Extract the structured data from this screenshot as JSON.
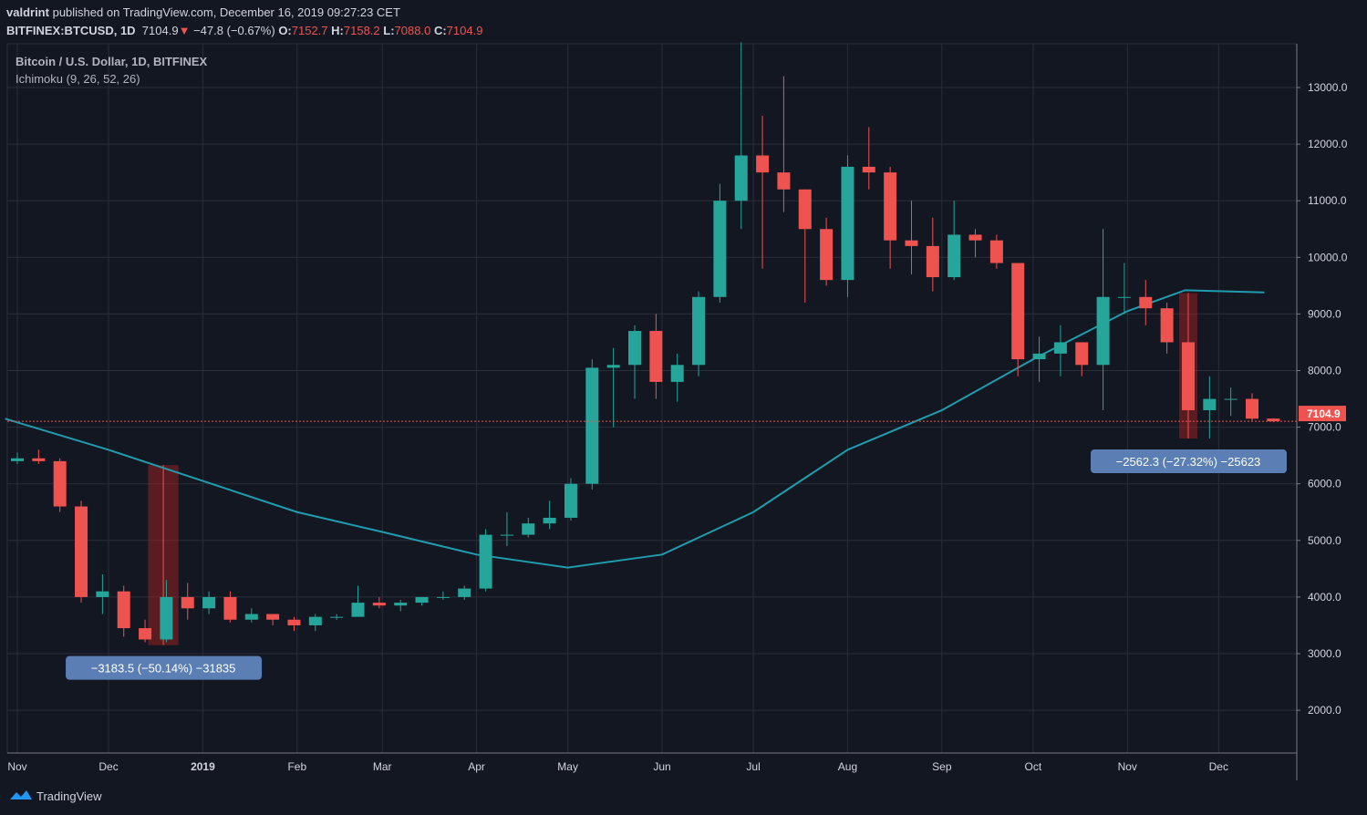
{
  "header": {
    "author": "valdrint",
    "published_text": "published on TradingView.com, December 16, 2019 09:27:23 CET",
    "symbol": "BITFINEX:BTCUSD, 1D",
    "last": "7104.9",
    "change": "−47.8 (−0.67%)",
    "o_label": "O:",
    "o": "7152.7",
    "h_label": "H:",
    "h": "7158.2",
    "l_label": "L:",
    "l": "7088.0",
    "c_label": "C:",
    "c": "7104.9"
  },
  "legend": {
    "title": "Bitcoin / U.S. Dollar, 1D, BITFINEX",
    "indicator": "Ichimoku (9, 26, 52, 26)"
  },
  "brand": "TradingView",
  "colors": {
    "background": "#131722",
    "grid": "#2a2e39",
    "up": "#26a69a",
    "down": "#ef5350",
    "ma": "#1f9cad",
    "measure_label": "#5b7fb5"
  },
  "chart_data": {
    "type": "candlestick",
    "ylim": [
      1000,
      13800
    ],
    "yticks": [
      2000,
      3000,
      4000,
      5000,
      6000,
      7000,
      8000,
      9000,
      10000,
      11000,
      12000,
      13000
    ],
    "ytick_labels": [
      "2000.0",
      "3000.0",
      "4000.0",
      "5000.0",
      "6000.0",
      "7000.0",
      "8000.0",
      "9000.0",
      "10000.0",
      "11000.0",
      "12000.0",
      "13000.0"
    ],
    "xticks": [
      {
        "date": "2018-11-01",
        "label": "Nov"
      },
      {
        "date": "2018-12-01",
        "label": "Dec"
      },
      {
        "date": "2019-01-01",
        "label": "2019"
      },
      {
        "date": "2019-02-01",
        "label": "Feb"
      },
      {
        "date": "2019-03-01",
        "label": "Mar"
      },
      {
        "date": "2019-04-01",
        "label": "Apr"
      },
      {
        "date": "2019-05-01",
        "label": "May"
      },
      {
        "date": "2019-06-01",
        "label": "Jun"
      },
      {
        "date": "2019-07-01",
        "label": "Jul"
      },
      {
        "date": "2019-08-01",
        "label": "Aug"
      },
      {
        "date": "2019-09-01",
        "label": "Sep"
      },
      {
        "date": "2019-10-01",
        "label": "Oct"
      },
      {
        "date": "2019-11-01",
        "label": "Nov"
      },
      {
        "date": "2019-12-01",
        "label": "Dec"
      }
    ],
    "last_price": 7104.9,
    "last_price_label": "7104.9",
    "candles": [
      [
        "2018-10-29",
        6400,
        6550,
        6350,
        6450
      ],
      [
        "2018-11-05",
        6450,
        6600,
        6350,
        6400
      ],
      [
        "2018-11-12",
        6400,
        6450,
        5500,
        5600
      ],
      [
        "2018-11-19",
        5600,
        5700,
        3900,
        4000
      ],
      [
        "2018-11-26",
        4000,
        4400,
        3700,
        4100
      ],
      [
        "2018-12-03",
        4100,
        4200,
        3300,
        3450
      ],
      [
        "2018-12-10",
        3450,
        3600,
        3200,
        3250
      ],
      [
        "2018-12-17",
        3250,
        4300,
        3200,
        4000
      ],
      [
        "2018-12-24",
        4000,
        4250,
        3600,
        3800
      ],
      [
        "2018-12-31",
        3800,
        4100,
        3700,
        4000
      ],
      [
        "2019-01-07",
        4000,
        4100,
        3550,
        3600
      ],
      [
        "2019-01-14",
        3600,
        3800,
        3550,
        3700
      ],
      [
        "2019-01-21",
        3700,
        3700,
        3500,
        3600
      ],
      [
        "2019-01-28",
        3600,
        3650,
        3400,
        3500
      ],
      [
        "2019-02-04",
        3500,
        3700,
        3400,
        3650
      ],
      [
        "2019-02-11",
        3650,
        3700,
        3600,
        3650
      ],
      [
        "2019-02-18",
        3650,
        4200,
        3650,
        3900
      ],
      [
        "2019-02-25",
        3900,
        4000,
        3800,
        3850
      ],
      [
        "2019-03-04",
        3850,
        3950,
        3750,
        3900
      ],
      [
        "2019-03-11",
        3900,
        4000,
        3850,
        4000
      ],
      [
        "2019-03-18",
        4000,
        4100,
        3950,
        4000
      ],
      [
        "2019-03-25",
        4000,
        4200,
        3950,
        4150
      ],
      [
        "2019-04-01",
        4150,
        5200,
        4100,
        5100
      ],
      [
        "2019-04-08",
        5100,
        5500,
        4900,
        5100
      ],
      [
        "2019-04-15",
        5100,
        5400,
        5050,
        5300
      ],
      [
        "2019-04-22",
        5300,
        5700,
        5200,
        5400
      ],
      [
        "2019-04-29",
        5400,
        6100,
        5350,
        6000
      ],
      [
        "2019-05-06",
        6000,
        8200,
        5900,
        8050
      ],
      [
        "2019-05-13",
        8050,
        8400,
        7000,
        8100
      ],
      [
        "2019-05-20",
        8100,
        8800,
        7500,
        8700
      ],
      [
        "2019-05-27",
        8700,
        9000,
        7500,
        7800
      ],
      [
        "2019-06-03",
        7800,
        8300,
        7450,
        8100
      ],
      [
        "2019-06-10",
        8100,
        9400,
        7900,
        9300
      ],
      [
        "2019-06-17",
        9300,
        11300,
        9200,
        11000
      ],
      [
        "2019-06-24",
        11000,
        13800,
        10500,
        11800
      ],
      [
        "2019-07-01",
        11800,
        12500,
        9800,
        11500
      ],
      [
        "2019-07-08",
        11500,
        13200,
        10800,
        11200
      ],
      [
        "2019-07-15",
        11200,
        11200,
        9200,
        10500
      ],
      [
        "2019-07-22",
        10500,
        10700,
        9500,
        9600
      ],
      [
        "2019-07-29",
        9600,
        11800,
        9300,
        11600
      ],
      [
        "2019-08-05",
        11600,
        12300,
        11200,
        11500
      ],
      [
        "2019-08-12",
        11500,
        11600,
        9800,
        10300
      ],
      [
        "2019-08-19",
        10300,
        11000,
        9700,
        10200
      ],
      [
        "2019-08-26",
        10200,
        10700,
        9400,
        9650
      ],
      [
        "2019-09-02",
        9650,
        11000,
        9600,
        10400
      ],
      [
        "2019-09-09",
        10400,
        10500,
        10000,
        10300
      ],
      [
        "2019-09-16",
        10300,
        10400,
        9800,
        9900
      ],
      [
        "2019-09-23",
        9900,
        9900,
        7900,
        8200
      ],
      [
        "2019-09-30",
        8200,
        8600,
        7800,
        8300
      ],
      [
        "2019-10-07",
        8300,
        8800,
        7900,
        8500
      ],
      [
        "2019-10-14",
        8500,
        8500,
        7900,
        8100
      ],
      [
        "2019-10-21",
        8100,
        10500,
        7300,
        9300
      ],
      [
        "2019-10-28",
        9300,
        9900,
        9000,
        9300
      ],
      [
        "2019-11-04",
        9300,
        9600,
        8800,
        9100
      ],
      [
        "2019-11-11",
        9100,
        9200,
        8300,
        8500
      ],
      [
        "2019-11-18",
        8500,
        8500,
        6800,
        7300
      ],
      [
        "2019-11-25",
        7300,
        7900,
        6800,
        7500
      ],
      [
        "2019-12-02",
        7500,
        7700,
        7200,
        7500
      ],
      [
        "2019-12-09",
        7500,
        7600,
        7100,
        7150
      ],
      [
        "2019-12-16",
        7152.7,
        7158.2,
        7088.0,
        7104.9
      ]
    ],
    "moving_average": [
      [
        "2018-10-28",
        7150
      ],
      [
        "2018-12-01",
        6600
      ],
      [
        "2019-01-01",
        6050
      ],
      [
        "2019-02-01",
        5500
      ],
      [
        "2019-03-01",
        5150
      ],
      [
        "2019-04-01",
        4750
      ],
      [
        "2019-05-01",
        4520
      ],
      [
        "2019-06-01",
        4750
      ],
      [
        "2019-07-01",
        5500
      ],
      [
        "2019-08-01",
        6600
      ],
      [
        "2019-09-01",
        7300
      ],
      [
        "2019-10-01",
        8200
      ],
      [
        "2019-11-01",
        9050
      ],
      [
        "2019-11-20",
        9420
      ],
      [
        "2019-12-16",
        9380
      ]
    ],
    "measurements": [
      {
        "from": "2018-12-14",
        "to": "2018-12-24",
        "high": 6330,
        "low": 3150,
        "label": "−3183.5 (−50.14%) −31835"
      },
      {
        "from": "2019-11-18",
        "to": "2019-11-24",
        "high": 9370,
        "low": 6800,
        "label": "−2562.3 (−27.32%) −25623"
      }
    ]
  }
}
